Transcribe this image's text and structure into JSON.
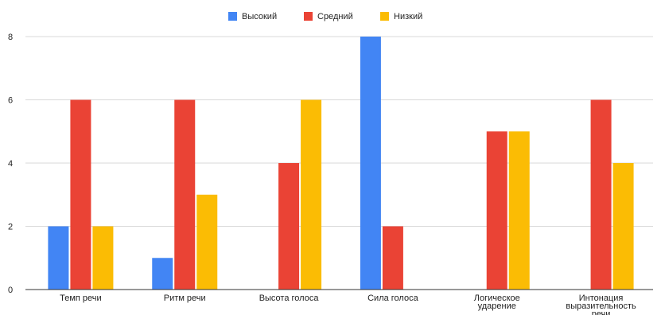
{
  "chart_data": {
    "type": "bar",
    "categories": [
      [
        "Темп речи"
      ],
      [
        "Ритм речи"
      ],
      [
        "Высота голоса"
      ],
      [
        "Сила голоса"
      ],
      [
        "Логическое",
        "ударение"
      ],
      [
        "Интонация",
        "выразительность",
        "речи"
      ]
    ],
    "series": [
      {
        "name": "Высокий",
        "color": "#4285f4",
        "values": [
          2,
          1,
          0,
          8,
          0,
          0
        ]
      },
      {
        "name": "Средний",
        "color": "#ea4335",
        "values": [
          6,
          6,
          4,
          2,
          5,
          6
        ]
      },
      {
        "name": "Низкий",
        "color": "#fbbc04",
        "values": [
          2,
          3,
          6,
          0,
          5,
          4
        ]
      }
    ],
    "yticks": [
      "0",
      "2",
      "4",
      "6",
      "8"
    ],
    "ylim": [
      0,
      8
    ],
    "grid": true,
    "legend_position": "top-center",
    "title": "",
    "xlabel": "",
    "ylabel": ""
  }
}
